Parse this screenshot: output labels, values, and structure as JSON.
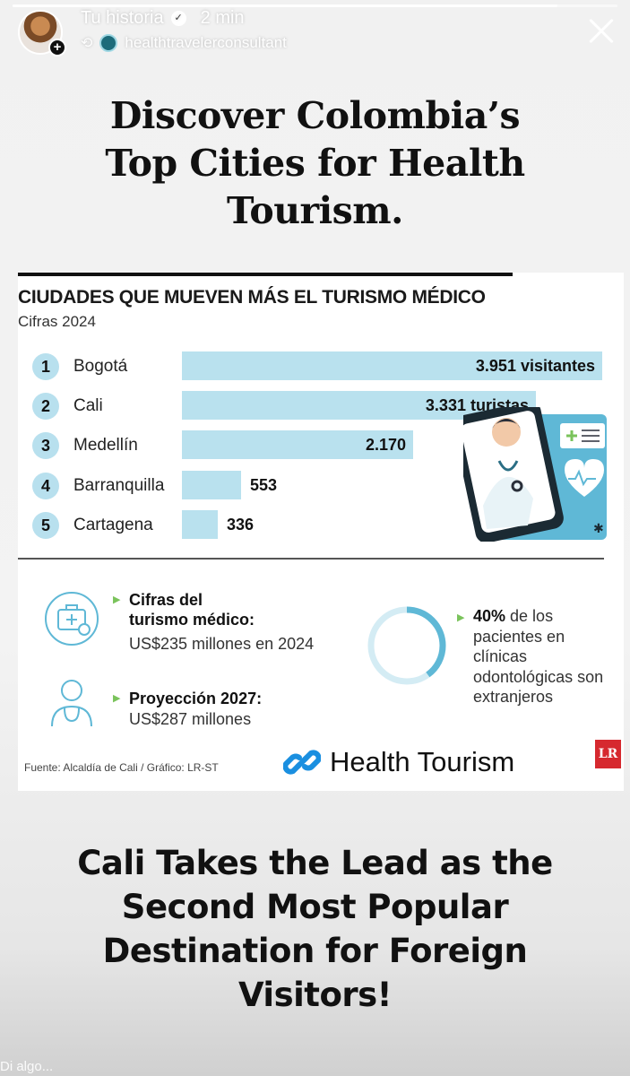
{
  "story": {
    "progress": 0.9,
    "title": "Tu historia",
    "time": "2 min",
    "account": "healthtravelerconsultant"
  },
  "headline": [
    "Discover Colombia’s",
    "Top Cities for Health",
    "Tourism."
  ],
  "infographic": {
    "title": "CIUDADES QUE MUEVEN MÁS EL TURISMO MÉDICO",
    "subtitle": "Cifras 2024",
    "source": "Fuente: Alcaldía de Cali / Gráfico: LR-ST",
    "logo_text": "Health Tourism",
    "lr_logo": "LR",
    "stats": {
      "cifras_title_1": "Cifras del",
      "cifras_title_2": "turismo médico:",
      "cifras_value": "US$235 millones en 2024",
      "proy_title": "Proyección 2027:",
      "proy_value": "US$287 millones",
      "pct_bold": "40%",
      "pct_rest": " de los pacientes en clínicas odontológicas son extranjeros",
      "pct_value": 0.4
    }
  },
  "chart_data": {
    "type": "bar",
    "title": "CIUDADES QUE MUEVEN MÁS EL TURISMO MÉDICO",
    "subtitle": "Cifras 2024",
    "categories": [
      "Bogotá",
      "Cali",
      "Medellín",
      "Barranquilla",
      "Cartagena"
    ],
    "ranks": [
      "1",
      "2",
      "3",
      "4",
      "5"
    ],
    "values": [
      3951,
      3331,
      2170,
      553,
      336
    ],
    "labels": [
      "3.951 visitantes",
      "3.331 turistas",
      "2.170",
      "553",
      "336"
    ]
  },
  "bottom_headline": [
    "Cali Takes the Lead as the",
    "Second Most Popular",
    "Destination for Foreign",
    "Visitors!"
  ],
  "reply": {
    "placeholder": "Di algo..."
  }
}
